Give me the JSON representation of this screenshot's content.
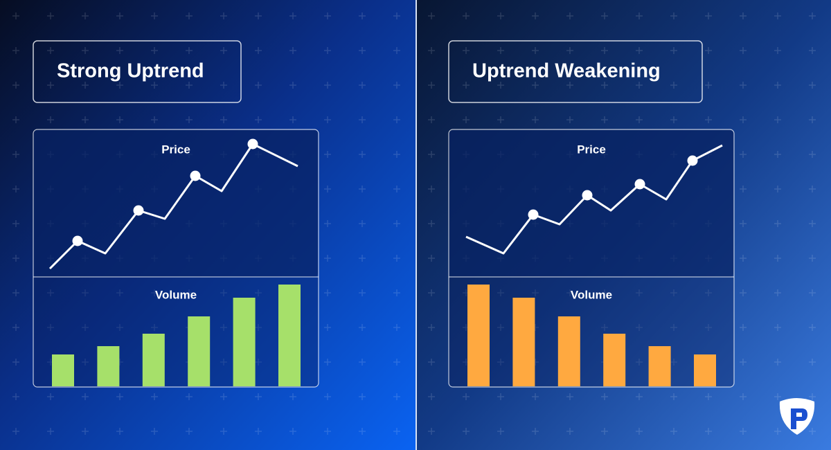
{
  "panels": [
    {
      "heading": "Strong Uptrend",
      "chart_data": [
        {
          "type": "line",
          "title": "Price",
          "x": [
            24,
            64,
            104,
            152,
            190,
            234,
            272,
            317,
            382
          ],
          "values": [
            6,
            26,
            17,
            48,
            42,
            73,
            62,
            96,
            80
          ],
          "markers": [
            false,
            true,
            false,
            true,
            false,
            true,
            false,
            true,
            false
          ],
          "color": "#ffffff",
          "xlim": [
            0,
            412
          ],
          "ylim": [
            0,
            100
          ]
        },
        {
          "type": "bar",
          "title": "Volume",
          "values": [
            46,
            58,
            76,
            101,
            128,
            147
          ],
          "color": "#a6e06a",
          "ylim": [
            0,
            160
          ]
        }
      ]
    },
    {
      "heading": "Uptrend Weakening",
      "chart_data": [
        {
          "type": "line",
          "title": "Price",
          "x": [
            25,
            79,
            122,
            160,
            200,
            234,
            276,
            314,
            352,
            395
          ],
          "values": [
            29,
            17,
            45,
            38,
            59,
            48,
            67,
            56,
            84,
            95
          ],
          "markers": [
            false,
            false,
            true,
            false,
            true,
            false,
            true,
            false,
            true,
            false
          ],
          "color": "#ffffff",
          "xlim": [
            0,
            412
          ],
          "ylim": [
            0,
            100
          ]
        },
        {
          "type": "bar",
          "title": "Volume",
          "values": [
            147,
            128,
            101,
            76,
            58,
            46
          ],
          "color": "#ffa940",
          "ylim": [
            0,
            160
          ]
        }
      ]
    }
  ]
}
